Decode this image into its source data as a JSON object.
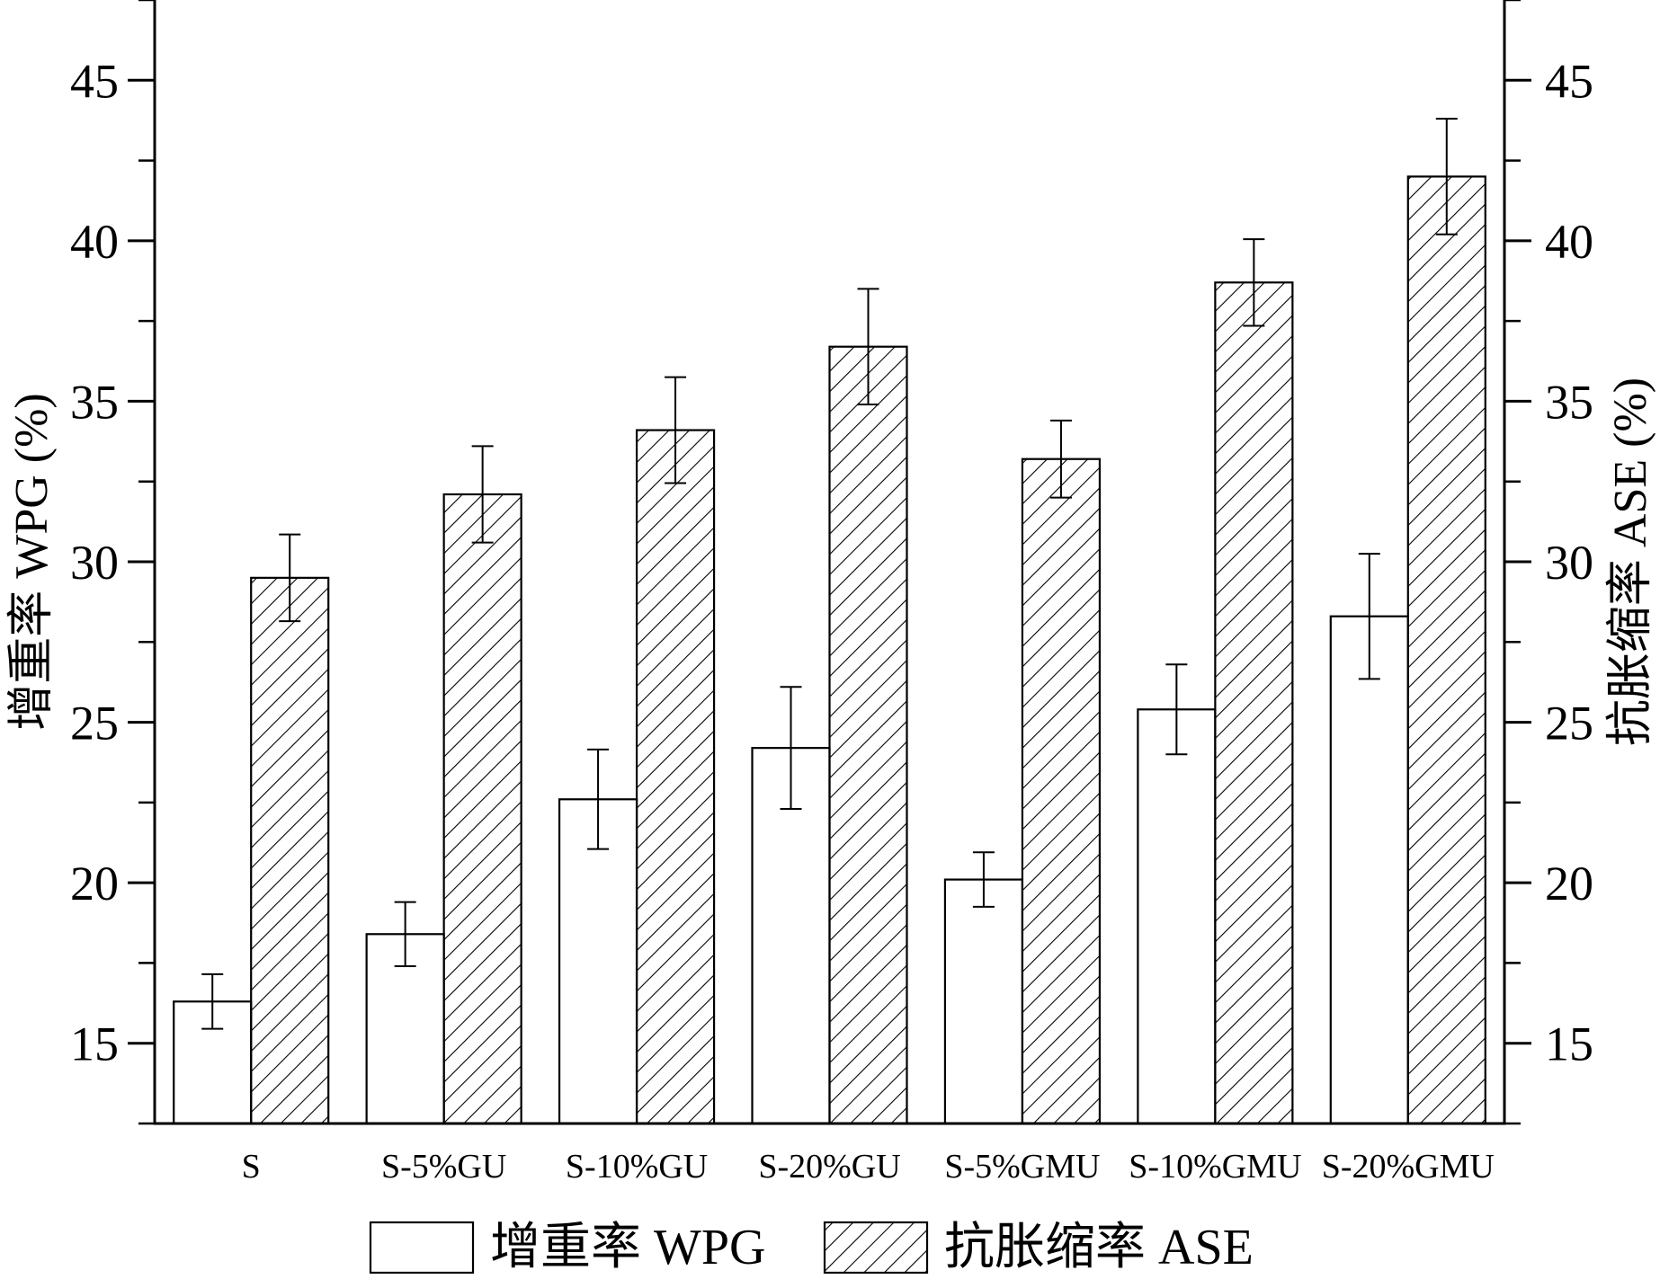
{
  "chart_data": {
    "type": "bar",
    "categories": [
      "S",
      "S-5%GU",
      "S-10%GU",
      "S-20%GU",
      "S-5%GMU",
      "S-10%GMU",
      "S-20%GMU"
    ],
    "series": [
      {
        "name": "增重率  WPG",
        "values": [
          16.3,
          18.4,
          22.6,
          24.2,
          20.1,
          25.4,
          28.3
        ],
        "errors": [
          0.85,
          1.0,
          1.55,
          1.9,
          0.85,
          1.4,
          1.95
        ],
        "fill": "none"
      },
      {
        "name": "抗胀缩率  ASE",
        "values": [
          29.5,
          32.1,
          34.1,
          36.7,
          33.2,
          38.7,
          42.0
        ],
        "errors": [
          1.35,
          1.5,
          1.65,
          1.8,
          1.2,
          1.35,
          1.8
        ],
        "fill": "hatch"
      }
    ],
    "ylabel": "增重率  WPG (%)",
    "ylabel_right": "抗胀缩率  ASE (%)",
    "ylim": [
      12.5,
      47.5
    ],
    "yticks": [
      15,
      20,
      25,
      30,
      35,
      40,
      45
    ],
    "ylim_right": [
      12.5,
      47.5
    ],
    "yticks_right": [
      15,
      20,
      25,
      30,
      35,
      40,
      45
    ],
    "grid": false,
    "legend_position": "bottom"
  }
}
